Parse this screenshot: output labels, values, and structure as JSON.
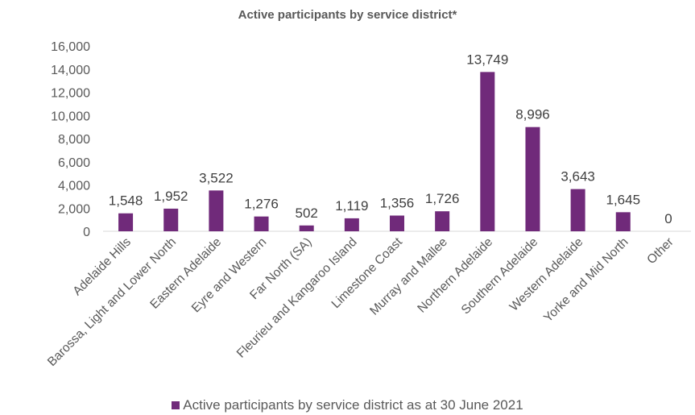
{
  "chart_data": {
    "type": "bar",
    "title": "Active participants by service district*",
    "categories": [
      "Adelaide Hills",
      "Barossa, Light and Lower North",
      "Eastern Adelaide",
      "Eyre and Western",
      "Far North (SA)",
      "Fleurieu and Kangaroo Island",
      "Limestone Coast",
      "Murray and Mallee",
      "Northern Adelaide",
      "Southern Adelaide",
      "Western Adelaide",
      "Yorke and Mid North",
      "Other"
    ],
    "series": [
      {
        "name": "Active participants by service district as at 30 June 2021",
        "values": [
          1548,
          1952,
          3522,
          1276,
          502,
          1119,
          1356,
          1726,
          13749,
          8996,
          3643,
          1645,
          0
        ],
        "value_labels": [
          "1,548",
          "1,952",
          "3,522",
          "1,276",
          "502",
          "1,119",
          "1,356",
          "1,726",
          "13,749",
          "8,996",
          "3,643",
          "1,645",
          "0"
        ]
      }
    ],
    "ylim": [
      0,
      16000
    ],
    "y_ticks": [
      0,
      2000,
      4000,
      6000,
      8000,
      10000,
      12000,
      14000,
      16000
    ],
    "y_tick_labels": [
      "0",
      "2,000",
      "4,000",
      "6,000",
      "8,000",
      "10,000",
      "12,000",
      "14,000",
      "16,000"
    ],
    "xlabel": "",
    "ylabel": "",
    "grid": false,
    "legend_position": "bottom",
    "bar_color": "#702a7a",
    "axis_color": "#d9d9d9"
  }
}
